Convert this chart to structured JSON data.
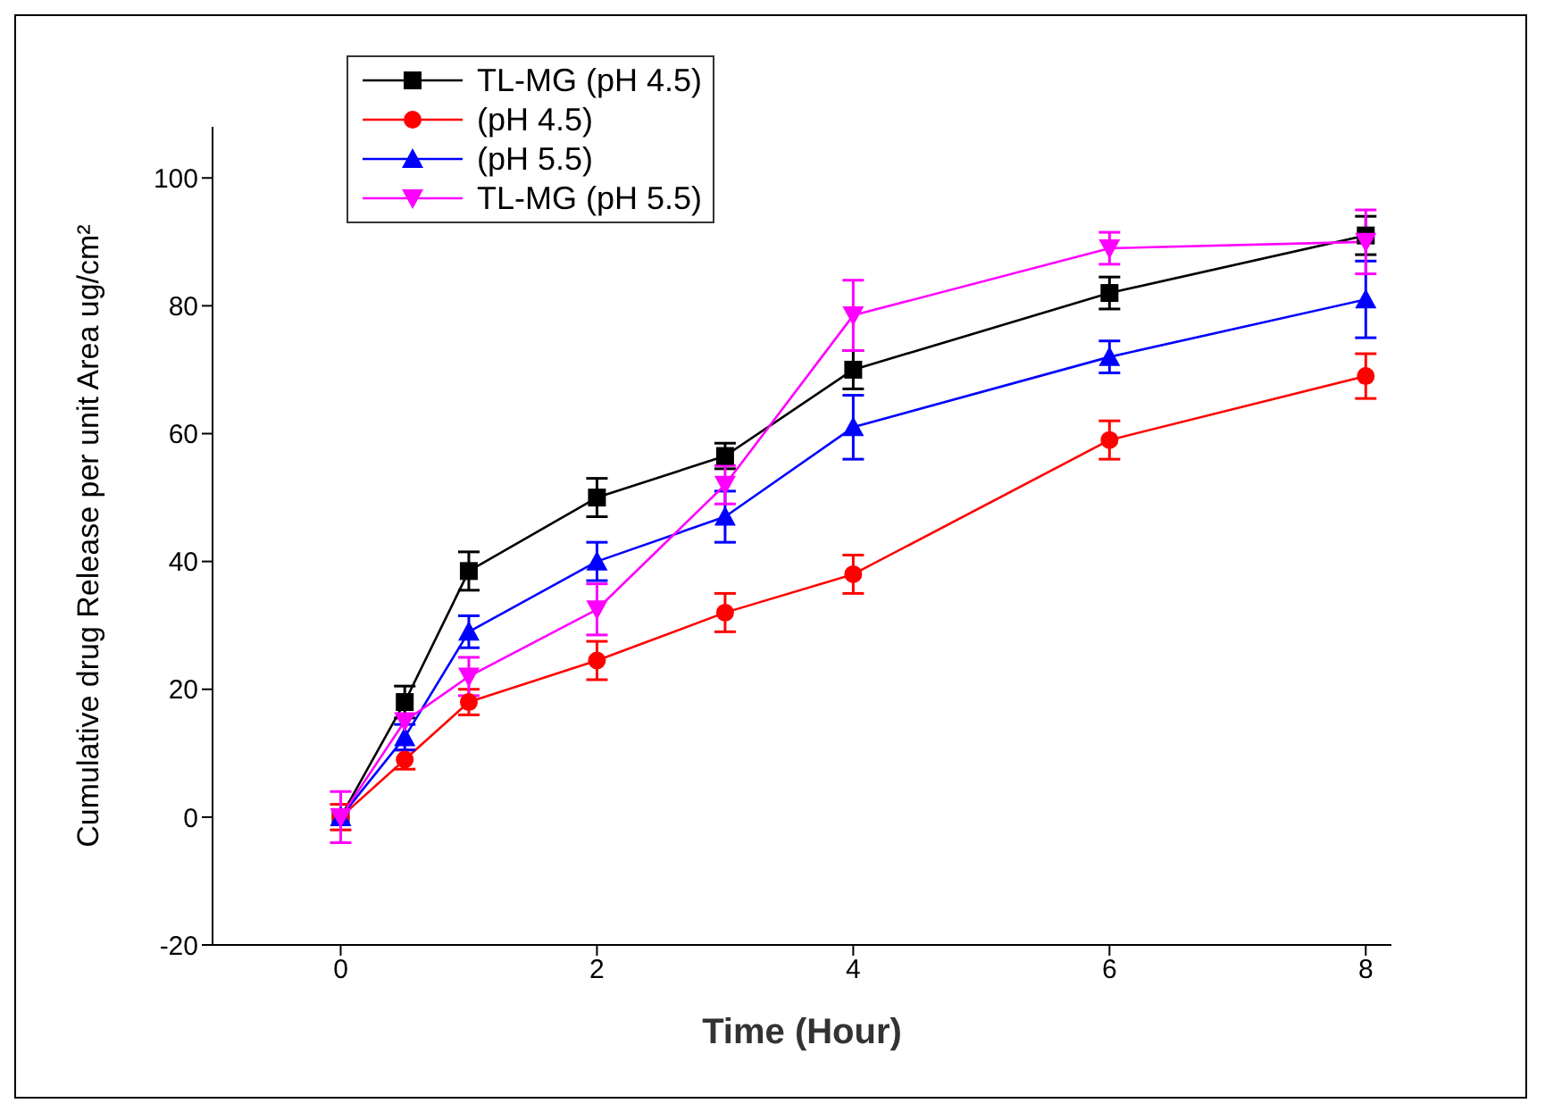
{
  "chart_data": {
    "type": "line",
    "xlabel": "Time (Hour)",
    "ylabel": "Cumulative drug Release per unit Area ug/cm²",
    "x": [
      0,
      0.5,
      1,
      2,
      3,
      4,
      6,
      8
    ],
    "xlim": [
      -1,
      8.2
    ],
    "xticks": [
      0,
      2,
      4,
      6,
      8
    ],
    "ylim": [
      -20,
      108
    ],
    "yticks": [
      -20,
      0,
      20,
      40,
      60,
      80,
      100
    ],
    "grid": false,
    "legend": "top left",
    "line_style": "solid",
    "series": [
      {
        "name": "TL-MG (pH 4.5)",
        "color": "#000000",
        "marker": "square",
        "values": [
          0,
          18,
          38.5,
          50,
          56.5,
          70,
          82,
          91
        ],
        "errors": [
          null,
          2.5,
          3,
          3,
          2,
          3,
          2.5,
          3
        ]
      },
      {
        "name": "(pH 4.5)",
        "color": "#ff0000",
        "marker": "circle",
        "values": [
          0,
          9,
          18,
          24.5,
          32,
          38,
          59,
          69
        ],
        "errors": [
          2,
          1.5,
          2,
          3,
          3,
          3,
          3,
          3.5
        ]
      },
      {
        "name": "(pH 5.5)",
        "color": "#0000ff",
        "marker": "triangle",
        "values": [
          0,
          12.5,
          29,
          40,
          47,
          61,
          72,
          81
        ],
        "errors": [
          null,
          2,
          2.5,
          3,
          4,
          5,
          2.5,
          6
        ]
      },
      {
        "name": "TL-MG (pH 5.5)",
        "color": "#ff00ff",
        "marker": "triangle-down",
        "values": [
          0,
          15,
          22,
          32.5,
          52,
          78.5,
          89,
          90
        ],
        "errors": [
          4,
          null,
          3,
          4,
          3,
          5.5,
          2.5,
          5
        ]
      }
    ]
  }
}
